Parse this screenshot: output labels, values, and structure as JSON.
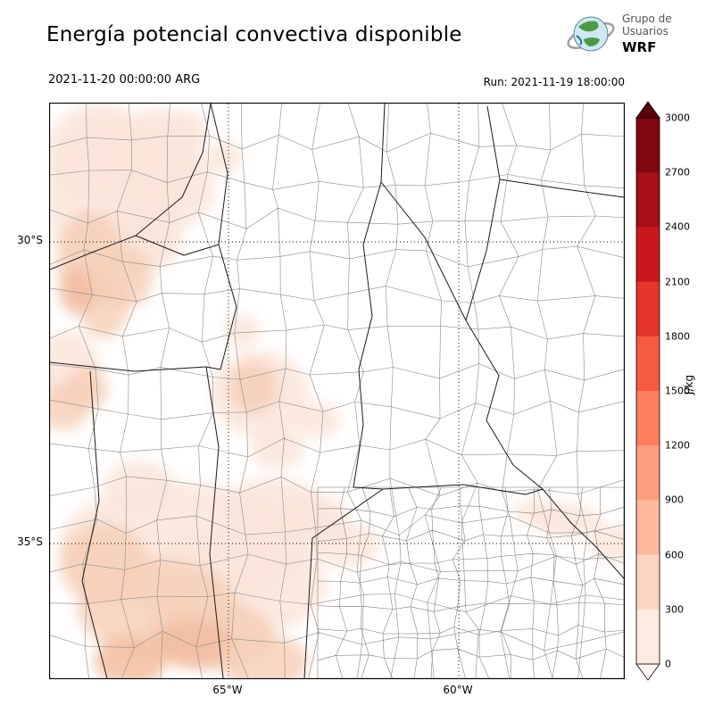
{
  "header": {
    "title": "Energía potencial convectiva disponible",
    "valid_time": "2021-11-20 00:00:00 ARG",
    "run_label": "Run: 2021-11-19 18:00:00",
    "logo": {
      "org_line1": "Grupo de",
      "org_line2": "Usuarios",
      "org_line3": "WRF"
    }
  },
  "map": {
    "lat_tick_labels": [
      "30°S",
      "35°S"
    ],
    "lon_tick_labels": [
      "65°W",
      "60°W"
    ]
  },
  "colorbar": {
    "unit_label": "J/kg",
    "tick_labels": [
      "0",
      "300",
      "600",
      "900",
      "1200",
      "1500",
      "1800",
      "2100",
      "2400",
      "2700",
      "3000"
    ],
    "segment_colors_bottom_to_top": [
      "#feeae1",
      "#fdd4c2",
      "#fcb99e",
      "#fc9e7e",
      "#fb7e5e",
      "#f65a41",
      "#e33529",
      "#c9181d",
      "#a50f15",
      "#810711"
    ],
    "under_arrow_color": "#fff5f0",
    "over_arrow_color": "#5a000c",
    "outline_color": "#000000"
  },
  "shading": {
    "light_fill": "#fbe5d9",
    "mid_fill": "#f7d0ba",
    "strong_fill": "#f3bda1"
  }
}
